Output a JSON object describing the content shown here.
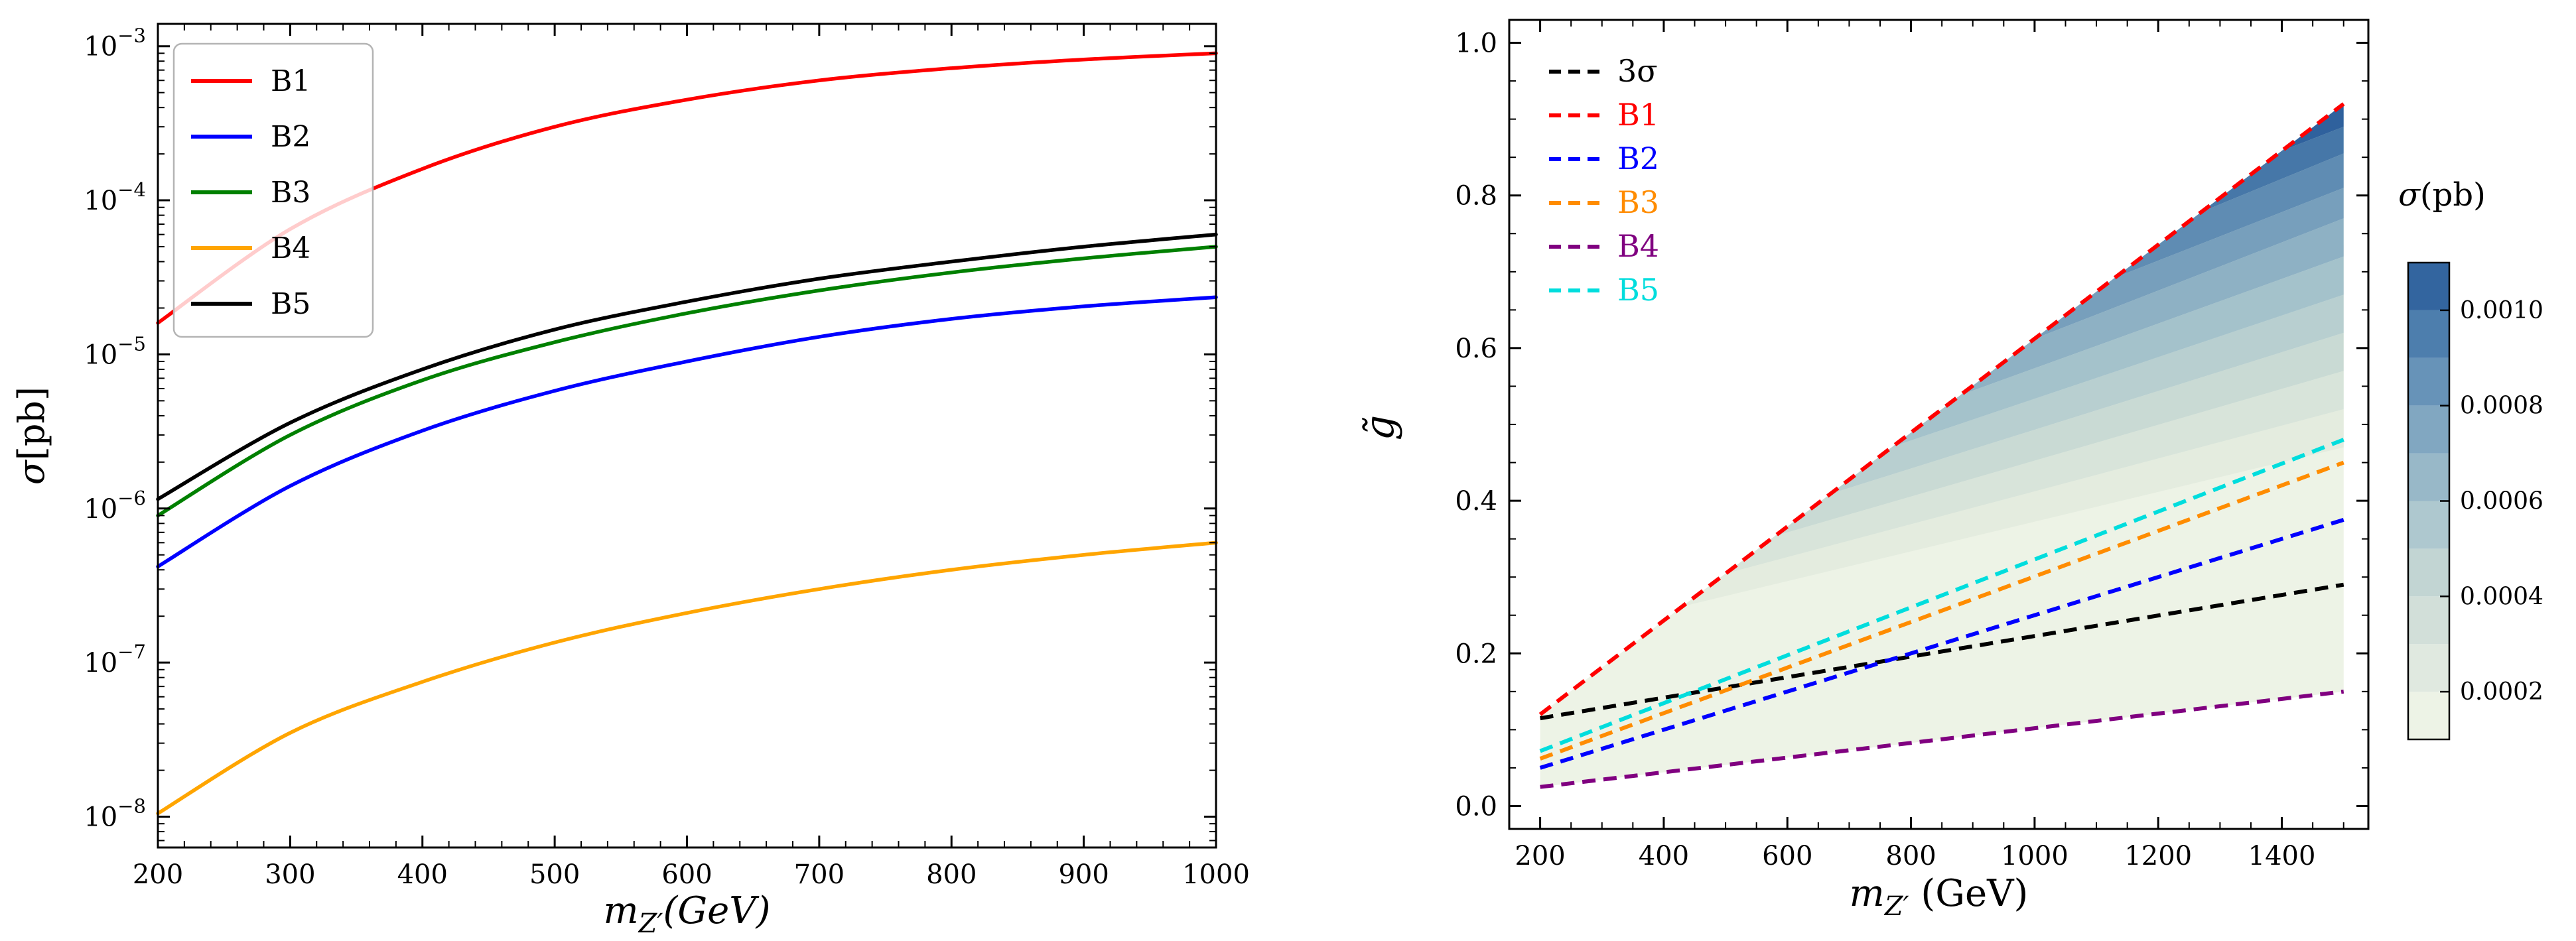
{
  "figure": {
    "background": "#ffffff"
  },
  "chart_data": [
    {
      "id": "cross-section-vs-mass",
      "type": "line",
      "xlabel": {
        "main": "m",
        "sub": "Z′",
        "rest": "(GeV)"
      },
      "ylabel_main": "σ",
      "ylabel_rest": "[pb]",
      "x_scale": "linear",
      "y_scale": "log",
      "xlim": [
        200,
        1000
      ],
      "ylim_log10": [
        -8.2,
        -2.855
      ],
      "x_ticks": [
        200,
        300,
        400,
        500,
        600,
        700,
        800,
        900,
        1000
      ],
      "y_tick_exponents": [
        -3,
        -4,
        -5,
        -6,
        -7,
        -8
      ],
      "grid": false,
      "legend_position": "upper left",
      "x": [
        200,
        300,
        400,
        500,
        600,
        700,
        800,
        900,
        1000
      ],
      "series": [
        {
          "name": "B1",
          "color": "#ff0000",
          "values": [
            1.6e-05,
            6.5e-05,
            0.00016,
            0.0003,
            0.00045,
            0.0006,
            0.00072,
            0.00082,
            0.0009
          ]
        },
        {
          "name": "B2",
          "color": "#0000ff",
          "values": [
            4.2e-07,
            1.4e-06,
            3.2e-06,
            5.8e-06,
            9e-06,
            1.3e-05,
            1.7e-05,
            2.05e-05,
            2.35e-05
          ]
        },
        {
          "name": "B3",
          "color": "#008000",
          "values": [
            9e-07,
            3e-06,
            6.8e-06,
            1.2e-05,
            1.85e-05,
            2.6e-05,
            3.4e-05,
            4.2e-05,
            5e-05
          ]
        },
        {
          "name": "B4",
          "color": "#ffa500",
          "values": [
            1.05e-08,
            3.5e-08,
            7.5e-08,
            1.35e-07,
            2.1e-07,
            3e-07,
            4e-07,
            5e-07,
            6e-07
          ]
        },
        {
          "name": "B5",
          "color": "#000000",
          "values": [
            1.15e-06,
            3.6e-06,
            8e-06,
            1.45e-05,
            2.2e-05,
            3.1e-05,
            4e-05,
            5e-05,
            6e-05
          ]
        }
      ]
    },
    {
      "id": "coupling-vs-mass-contour",
      "type": "contour+line",
      "xlabel": {
        "main": "m",
        "sub": "Z′",
        "rest": " (GeV)"
      },
      "ylabel": "g̃",
      "xlim": [
        150,
        1540
      ],
      "ylim": [
        -0.03,
        1.03
      ],
      "x_ticks": [
        200,
        400,
        600,
        800,
        1000,
        1200,
        1400
      ],
      "y_ticks": [
        0.0,
        0.2,
        0.4,
        0.6,
        0.8,
        1.0
      ],
      "y_tick_labels": [
        "0.0",
        "0.2",
        "0.4",
        "0.6",
        "0.8",
        "1.0"
      ],
      "legend": [
        {
          "label": "3σ",
          "color": "#000000"
        },
        {
          "label": "B1",
          "color": "#ff0000"
        },
        {
          "label": "B2",
          "color": "#0000ff"
        },
        {
          "label": "B3",
          "color": "#ff8c00"
        },
        {
          "label": "B4",
          "color": "#800080"
        },
        {
          "label": "B5",
          "color": "#00dddd"
        }
      ],
      "lines": [
        {
          "name": "3σ",
          "color": "#000000",
          "points": [
            [
              200,
              0.115
            ],
            [
              1500,
              0.29
            ]
          ]
        },
        {
          "name": "B1",
          "color": "#ff0000",
          "points": [
            [
              200,
              0.12
            ],
            [
              1500,
              0.92
            ]
          ]
        },
        {
          "name": "B2",
          "color": "#0000ff",
          "points": [
            [
              200,
              0.05
            ],
            [
              1500,
              0.375
            ]
          ]
        },
        {
          "name": "B3",
          "color": "#ff8c00",
          "points": [
            [
              200,
              0.062
            ],
            [
              1500,
              0.45
            ]
          ]
        },
        {
          "name": "B4",
          "color": "#800080",
          "points": [
            [
              200,
              0.025
            ],
            [
              1500,
              0.15
            ]
          ]
        },
        {
          "name": "B5",
          "color": "#00dddd",
          "points": [
            [
              200,
              0.072
            ],
            [
              1500,
              0.48
            ]
          ]
        }
      ],
      "contour": {
        "base_region_color": "#edf3e6",
        "base_region_lower_line": "B4",
        "base_region_upper_line": "B1",
        "upper_line": [
          [
            200,
            0.12
          ],
          [
            1500,
            0.92
          ]
        ],
        "band_colors": [
          "#e4ecdf",
          "#d8e4da",
          "#c9dad4",
          "#b8cfd0",
          "#a4c2cb",
          "#8eb1c4",
          "#779fbc",
          "#5f8cb3",
          "#4677a8",
          "#2f619d"
        ],
        "band_boundaries": [
          {
            "start_m": 430,
            "right_g": 0.47
          },
          {
            "start_m": 500,
            "right_g": 0.52
          },
          {
            "start_m": 580,
            "right_g": 0.57
          },
          {
            "start_m": 670,
            "right_g": 0.62
          },
          {
            "start_m": 770,
            "right_g": 0.67
          },
          {
            "start_m": 880,
            "right_g": 0.72
          },
          {
            "start_m": 1000,
            "right_g": 0.77
          },
          {
            "start_m": 1130,
            "right_g": 0.81
          },
          {
            "start_m": 1270,
            "right_g": 0.855
          },
          {
            "start_m": 1400,
            "right_g": 0.89
          }
        ]
      },
      "colorbar": {
        "title_main": "σ",
        "title_rest": "(pb)",
        "range": [
          0.0001,
          0.0011
        ],
        "tick_values": [
          0.0002,
          0.0004,
          0.0006,
          0.0008,
          0.001
        ],
        "tick_labels": [
          "0.0002",
          "0.0004",
          "0.0006",
          "0.0008",
          "0.0010"
        ],
        "colors": [
          "#edf3e6",
          "#e0e9e0",
          "#d2dfd9",
          "#c2d5d3",
          "#aec8cf",
          "#98b8c8",
          "#81a7c1",
          "#6793b8",
          "#4d7ead",
          "#33659f"
        ]
      }
    }
  ]
}
